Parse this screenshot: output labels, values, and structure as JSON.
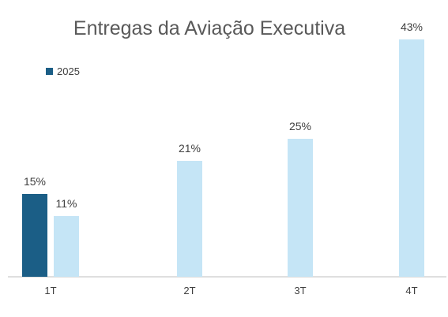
{
  "chart_data": {
    "type": "bar",
    "title": "Entregas da Aviação Executiva",
    "categories": [
      "1T",
      "2T",
      "3T",
      "4T"
    ],
    "series": [
      {
        "name": "2025",
        "color": "#1b5e86",
        "values": [
          15,
          null,
          null,
          null
        ],
        "labels": [
          "15%",
          "",
          "",
          ""
        ]
      },
      {
        "color": "#c5e5f6",
        "values": [
          11,
          21,
          25,
          43
        ],
        "labels": [
          "11%",
          "21%",
          "25%",
          "43%"
        ]
      }
    ],
    "ylim": [
      0,
      43
    ],
    "grid": false,
    "legend_position": "top-left",
    "axis_color": "#bfbfbf"
  }
}
